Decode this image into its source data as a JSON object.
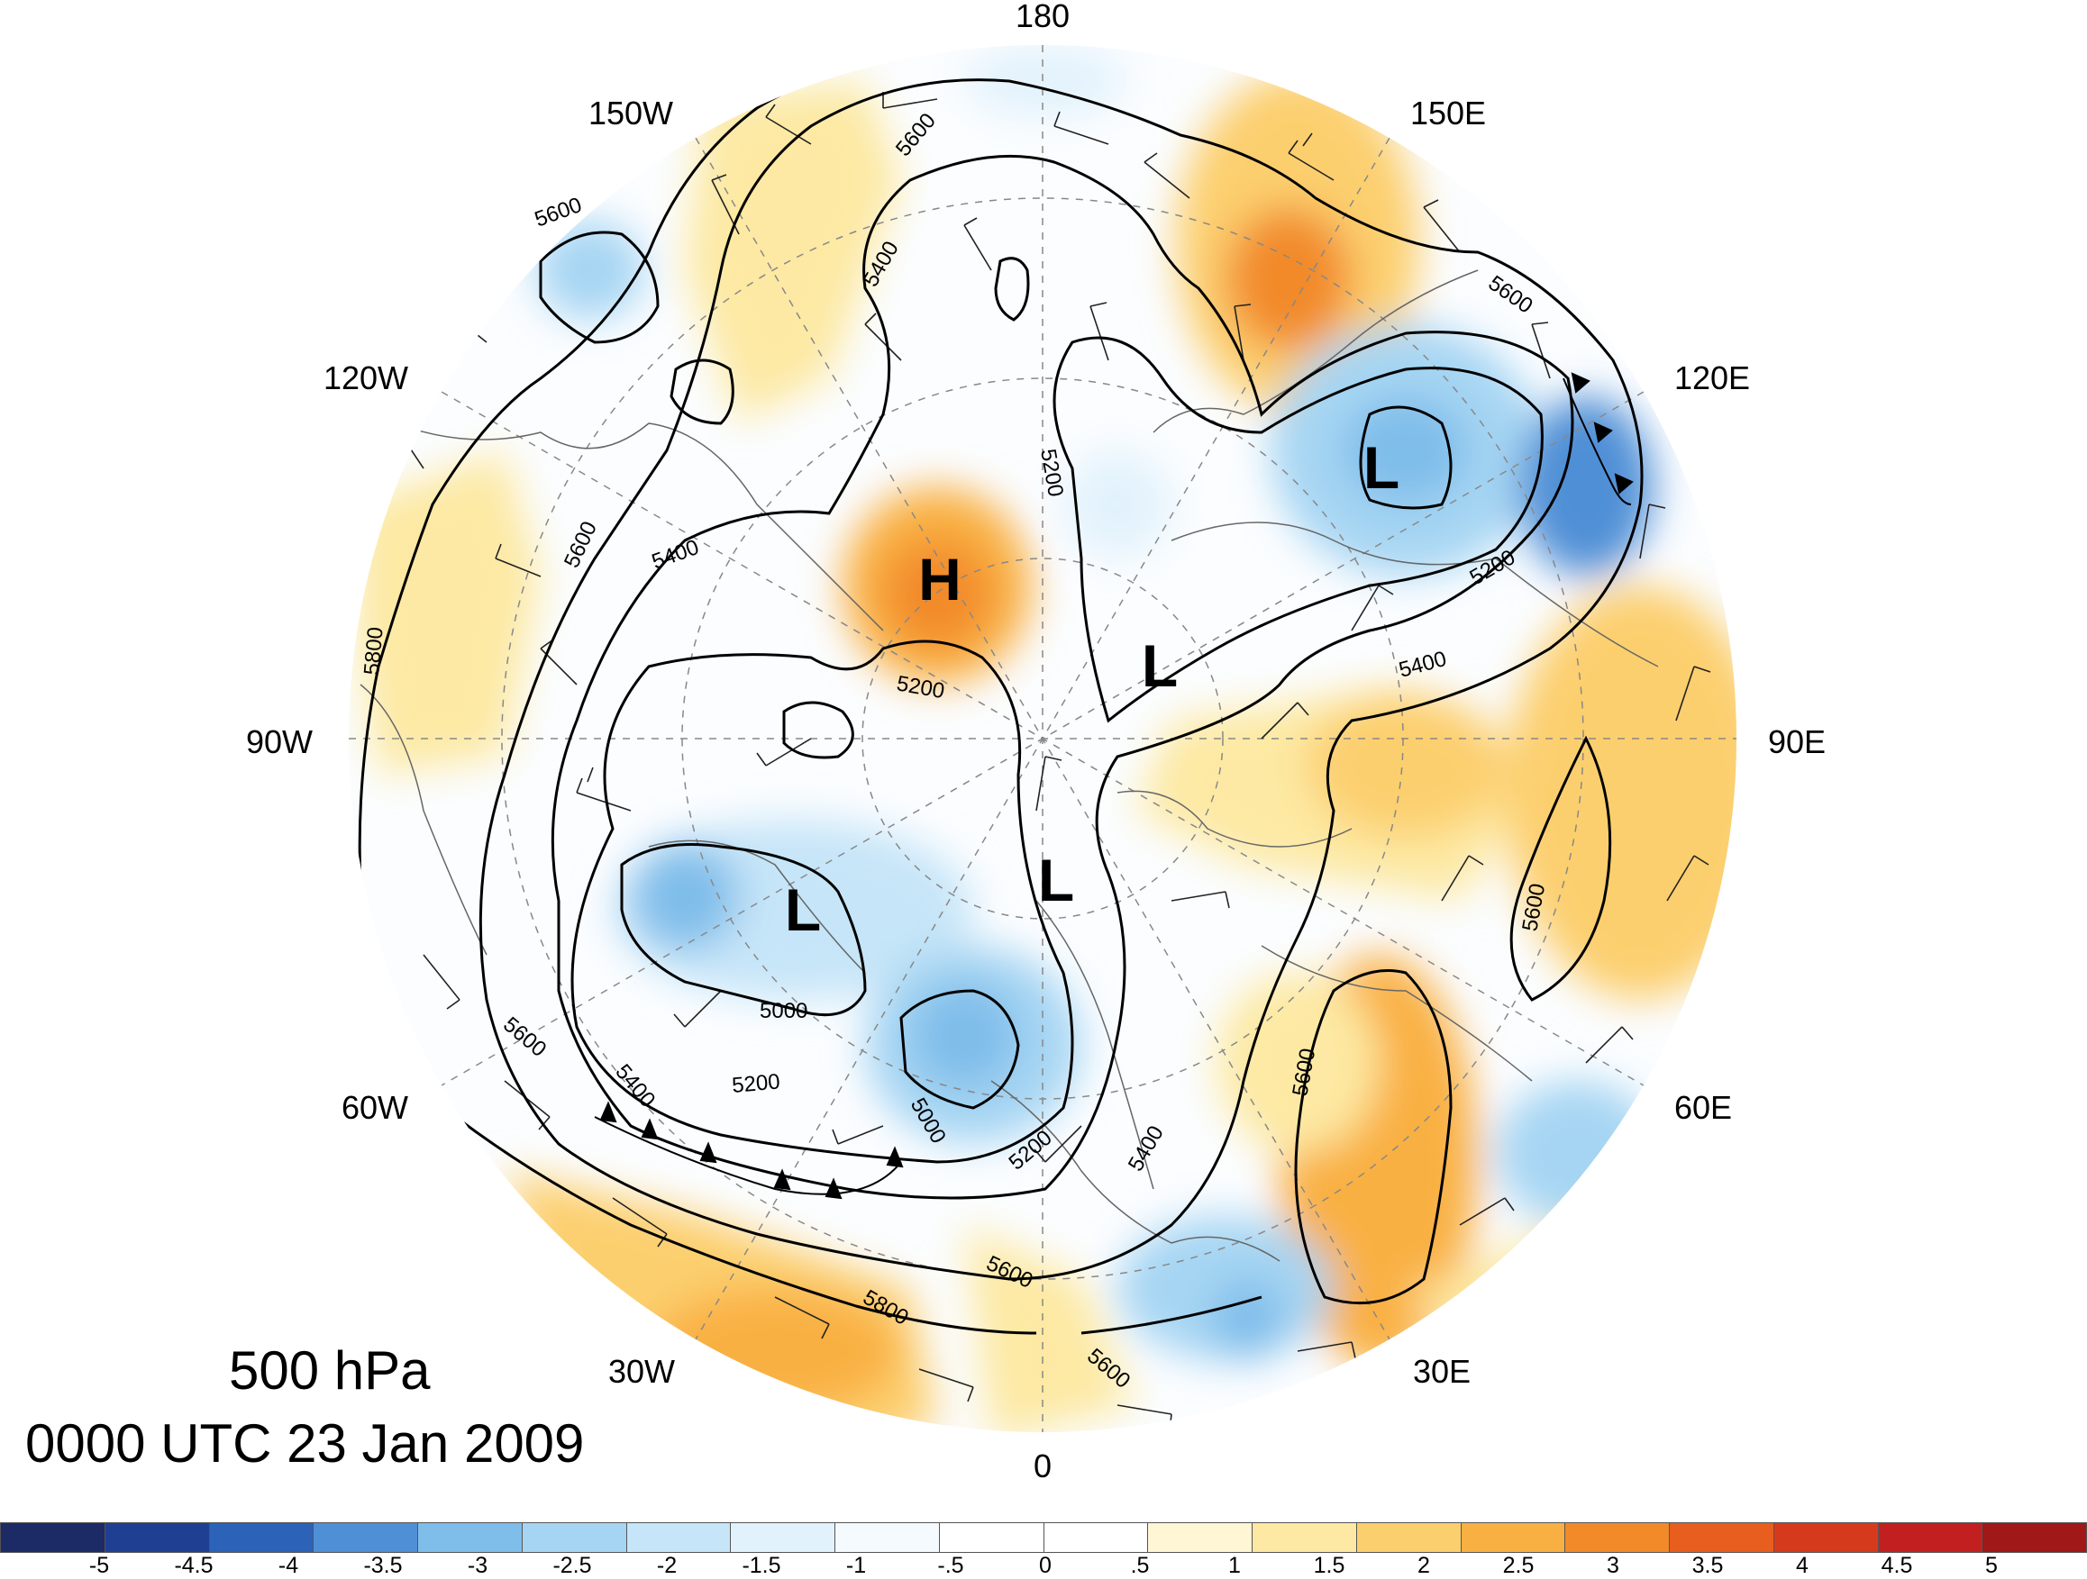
{
  "title": {
    "level": "500 hPa",
    "time": "0000 UTC 23 Jan 2009"
  },
  "map": {
    "projection": "north polar stereographic",
    "longitude_labels": [
      {
        "lon": 180,
        "text": "180"
      },
      {
        "lon": 150,
        "text": "150E"
      },
      {
        "lon": 120,
        "text": "120E"
      },
      {
        "lon": 90,
        "text": "90E"
      },
      {
        "lon": 60,
        "text": "60E"
      },
      {
        "lon": 30,
        "text": "30E"
      },
      {
        "lon": 0,
        "text": "0"
      },
      {
        "lon": -30,
        "text": "30W"
      },
      {
        "lon": -60,
        "text": "60W"
      },
      {
        "lon": -90,
        "text": "90W"
      },
      {
        "lon": -120,
        "text": "120W"
      },
      {
        "lon": -150,
        "text": "150W"
      }
    ],
    "height_contour_labels": [
      "5000",
      "5000",
      "5200",
      "5200",
      "5200",
      "5200",
      "5200",
      "5400",
      "5400",
      "5400",
      "5400",
      "5400",
      "5600",
      "5600",
      "5600",
      "5600",
      "5600",
      "5600",
      "5600",
      "5600",
      "5600",
      "5800",
      "5800"
    ],
    "pressure_centers": [
      {
        "type": "H",
        "text": "H"
      },
      {
        "type": "L",
        "text": "L"
      },
      {
        "type": "L",
        "text": "L"
      },
      {
        "type": "L",
        "text": "L"
      },
      {
        "type": "L",
        "text": "L"
      }
    ],
    "layers": [
      "geopotential height contours (black)",
      "wind barbs",
      "shaded anomaly field",
      "coastlines and borders",
      "frontal boundaries"
    ]
  },
  "colorbar": {
    "colors": [
      "#1c2a66",
      "#1f3f92",
      "#2c63b8",
      "#4f8fd6",
      "#7fbdea",
      "#a6d5f3",
      "#c6e5f8",
      "#e2f2fc",
      "#f4fafe",
      "#ffffff",
      "#ffffff",
      "#fff6d6",
      "#fde9a3",
      "#fccf6e",
      "#f9b043",
      "#f28a2a",
      "#e75e1f",
      "#d63a1c",
      "#c22020",
      "#a01818"
    ],
    "tick_labels": [
      "-5",
      "-4.5",
      "-4",
      "-3.5",
      "-3",
      "-2.5",
      "-2",
      "-1.5",
      "-1",
      "-.5",
      "0",
      ".5",
      "1",
      "1.5",
      "2",
      "2.5",
      "3",
      "3.5",
      "4",
      "4.5",
      "5"
    ]
  }
}
